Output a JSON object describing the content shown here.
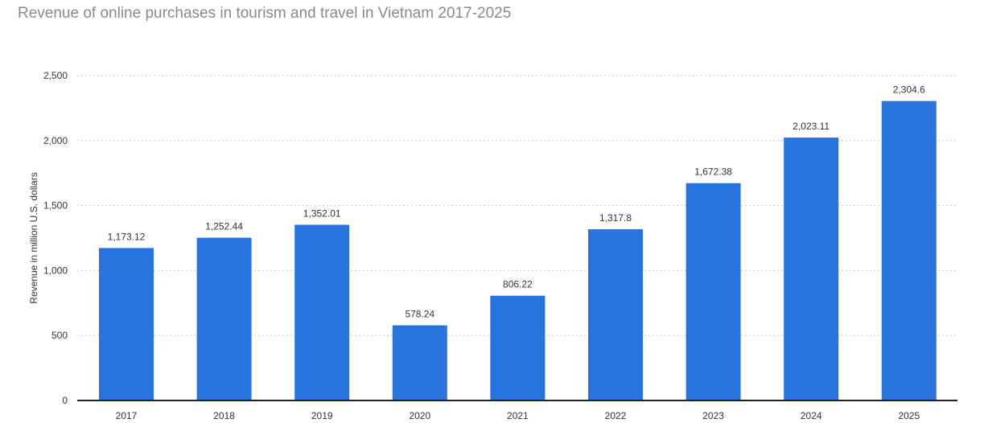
{
  "subtitle": "Revenue of online purchases in tourism and travel in Vietnam 2017-2025",
  "chart_data": {
    "type": "bar",
    "title": "",
    "subtitle": "Revenue of online purchases in tourism and travel in Vietnam 2017-2025",
    "xlabel": "",
    "ylabel": "Revenue in million U.S. dollars",
    "categories": [
      "2017",
      "2018",
      "2019",
      "2020",
      "2021",
      "2022",
      "2023",
      "2024",
      "2025"
    ],
    "values": [
      1173.12,
      1252.44,
      1352.01,
      578.24,
      806.22,
      1317.8,
      1672.38,
      2023.11,
      2304.6
    ],
    "value_labels": [
      "1,173.12",
      "1,252.44",
      "1,352.01",
      "578.24",
      "806.22",
      "1,317.8",
      "1,672.38",
      "2,023.11",
      "2,304.6"
    ],
    "ylim": [
      0,
      2500
    ],
    "yticks": [
      0,
      500,
      1000,
      1500,
      2000,
      2500
    ],
    "ytick_labels": [
      "0",
      "500",
      "1,000",
      "1,500",
      "2,000",
      "2,500"
    ],
    "grid": true,
    "bar_color": "#2775dc",
    "grid_color": "#c8c8c8",
    "axis_color": "#222222",
    "text_color": "#333333"
  }
}
